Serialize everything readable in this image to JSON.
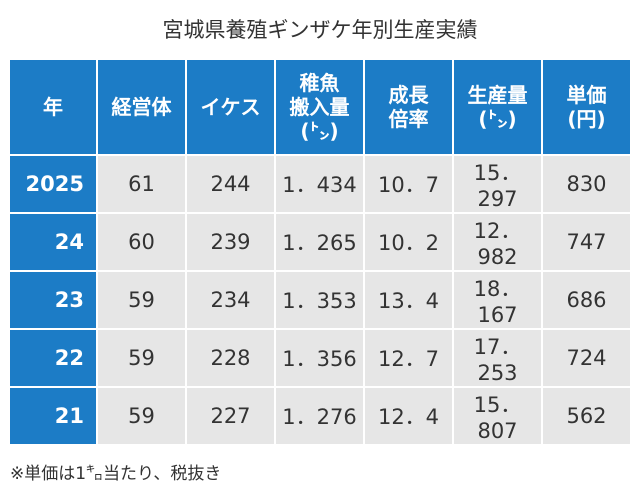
{
  "header": {
    "title": "宮城県養殖ギンザケ年別生産実績"
  },
  "table": {
    "columns": [
      [
        "年"
      ],
      [
        "経営体"
      ],
      [
        "イケス"
      ],
      [
        "稚魚",
        "搬入量",
        "(㌧)"
      ],
      [
        "成長",
        "倍率"
      ],
      [
        "生産量",
        "(㌧)"
      ],
      [
        "単価",
        "(円)"
      ]
    ],
    "rows": [
      [
        "2025",
        "61",
        "244",
        "1．434",
        "10．7",
        "15．297",
        "830"
      ],
      [
        "24",
        "60",
        "239",
        "1．265",
        "10．2",
        "12．982",
        "747"
      ],
      [
        "23",
        "59",
        "234",
        "1．353",
        "13．4",
        "18．167",
        "686"
      ],
      [
        "22",
        "59",
        "228",
        "1．356",
        "12．7",
        "17．253",
        "724"
      ],
      [
        "21",
        "59",
        "227",
        "1．276",
        "12．4",
        "15．807",
        "562"
      ]
    ]
  },
  "footnote": "※単価は1㌔当たり、税抜き"
}
